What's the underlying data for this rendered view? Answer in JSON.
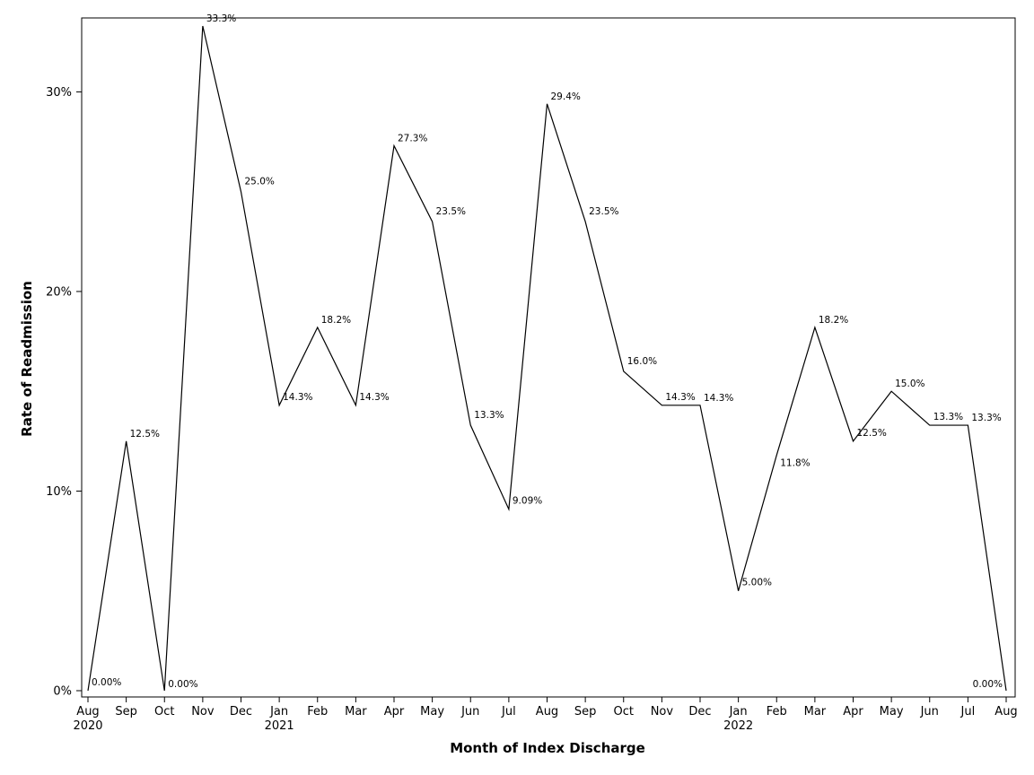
{
  "chart_data": {
    "type": "line",
    "xlabel": "Month of Index Discharge",
    "ylabel": "Rate of Readmission",
    "ylim": [
      0,
      33.3
    ],
    "y_ticks": [
      0,
      10,
      20,
      30
    ],
    "y_tick_labels": [
      "0%",
      "10%",
      "20%",
      "30%"
    ],
    "grid": false,
    "legend": "none",
    "line_color": "#000000",
    "categories": [
      "Aug",
      "Sep",
      "Oct",
      "Nov",
      "Dec",
      "Jan",
      "Feb",
      "Mar",
      "Apr",
      "May",
      "Jun",
      "Jul",
      "Aug",
      "Sep",
      "Oct",
      "Nov",
      "Dec",
      "Jan",
      "Feb",
      "Mar",
      "Apr",
      "May",
      "Jun",
      "Jul",
      "Aug"
    ],
    "year_labels": [
      "2020",
      "",
      "",
      "",
      "",
      "2021",
      "",
      "",
      "",
      "",
      "",
      "",
      "",
      "",
      "",
      "",
      "",
      "2022",
      "",
      "",
      "",
      "",
      "",
      "",
      ""
    ],
    "values": [
      0,
      12.5,
      0,
      33.3,
      25.0,
      14.3,
      18.2,
      14.3,
      27.3,
      23.5,
      13.3,
      9.09,
      29.4,
      23.5,
      16.0,
      14.3,
      14.3,
      5.0,
      11.8,
      18.2,
      12.5,
      15.0,
      13.3,
      13.3,
      0
    ],
    "data_labels": [
      "0.00%",
      "12.5%",
      "0.00%",
      "33.3%",
      "25.0%",
      "14.3%",
      "18.2%",
      "14.3%",
      "27.3%",
      "23.5%",
      "13.3%",
      "9.09%",
      "29.4%",
      "23.5%",
      "16.0%",
      "14.3%",
      "14.3%",
      "5.00%",
      "11.8%",
      "18.2%",
      "12.5%",
      "15.0%",
      "13.3%",
      "13.3%",
      "0.00%"
    ]
  }
}
